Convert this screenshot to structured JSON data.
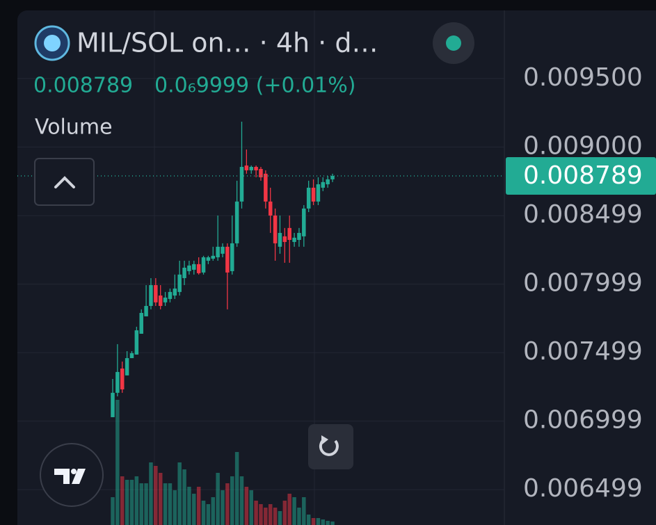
{
  "header": {
    "title": "MIL/SOL on… · 4h · d…",
    "price": "0.008789",
    "change": "0.0₆9999 (+0.01%)"
  },
  "volume_label": "Volume",
  "chart_data": {
    "type": "candlestick",
    "ylim": [
      0.006241,
      0.009997
    ],
    "yticks": [
      {
        "value": 0.0095,
        "label": "0.009500"
      },
      {
        "value": 0.009,
        "label": "0.009000"
      },
      0.008499,
      0.007999,
      0.007499,
      0.006999,
      0.006499
    ],
    "grid": true,
    "last_price": 0.008789,
    "up_color": "#22ab94",
    "down_color": "#f23645",
    "open": [
      0.007028,
      0.007206,
      0.007383,
      0.007333,
      0.007459,
      0.007485,
      0.007637,
      0.007764,
      0.00784,
      0.007992,
      0.007916,
      0.007866,
      0.007891,
      0.007916,
      0.007942,
      0.008043,
      0.008094,
      0.008104,
      0.008145,
      0.008084,
      0.00817,
      0.008185,
      0.008195,
      0.008221,
      0.008272,
      0.008094,
      0.008297,
      0.008602,
      0.008865,
      0.00883,
      0.008855,
      0.00884,
      0.008805,
      0.008602,
      0.0085,
      0.008272,
      0.008348,
      0.008409,
      0.008307,
      0.008322,
      0.008348,
      0.008551,
      0.008703,
      0.008602,
      0.008703,
      0.008728,
      0.008764
    ],
    "high": [
      0.007307,
      0.007561,
      0.007434,
      0.00751,
      0.00751,
      0.007688,
      0.007815,
      0.007992,
      0.008043,
      0.008043,
      0.007992,
      0.007942,
      0.007967,
      0.008069,
      0.00817,
      0.00817,
      0.00817,
      0.00817,
      0.008195,
      0.008206,
      0.008206,
      0.008272,
      0.0085,
      0.008297,
      0.008297,
      0.0085,
      0.008754,
      0.009185,
      0.008982,
      0.008865,
      0.008865,
      0.008855,
      0.00883,
      0.008703,
      0.008551,
      0.0085,
      0.008409,
      0.0085,
      0.008373,
      0.008409,
      0.008576,
      0.008754,
      0.008764,
      0.008779,
      0.008779,
      0.008789,
      0.008805
    ],
    "low": [
      0.007028,
      0.00718,
      0.007206,
      0.007333,
      0.007459,
      0.007485,
      0.007637,
      0.007764,
      0.007815,
      0.00784,
      0.007815,
      0.00784,
      0.007866,
      0.007891,
      0.007916,
      0.007992,
      0.008069,
      0.008069,
      0.008069,
      0.008069,
      0.008145,
      0.00817,
      0.00817,
      0.008195,
      0.007815,
      0.008069,
      0.008272,
      0.008551,
      0.008805,
      0.008805,
      0.008779,
      0.008754,
      0.008551,
      0.008373,
      0.00817,
      0.008221,
      0.008155,
      0.008155,
      0.008272,
      0.008272,
      0.008272,
      0.008525,
      0.008576,
      0.008576,
      0.008678,
      0.008703,
      0.008744
    ],
    "close": [
      0.007206,
      0.007358,
      0.007231,
      0.007459,
      0.007495,
      0.007662,
      0.007789,
      0.00784,
      0.007992,
      0.007866,
      0.00784,
      0.007901,
      0.007942,
      0.007967,
      0.008069,
      0.008119,
      0.008135,
      0.008145,
      0.008079,
      0.008195,
      0.008195,
      0.008206,
      0.008272,
      0.008272,
      0.008084,
      0.008297,
      0.008602,
      0.008855,
      0.00883,
      0.008855,
      0.00883,
      0.008779,
      0.008602,
      0.0085,
      0.008297,
      0.008373,
      0.008307,
      0.008322,
      0.008338,
      0.008373,
      0.008551,
      0.008703,
      0.008602,
      0.008728,
      0.008744,
      0.008764,
      0.008789
    ],
    "volume": [
      40,
      180,
      70,
      65,
      65,
      70,
      60,
      60,
      90,
      85,
      75,
      60,
      60,
      50,
      90,
      80,
      55,
      45,
      55,
      35,
      30,
      40,
      75,
      50,
      60,
      70,
      105,
      70,
      55,
      50,
      35,
      30,
      25,
      30,
      25,
      20,
      35,
      45,
      40,
      25,
      40,
      15,
      10,
      10,
      8,
      6,
      5
    ]
  }
}
